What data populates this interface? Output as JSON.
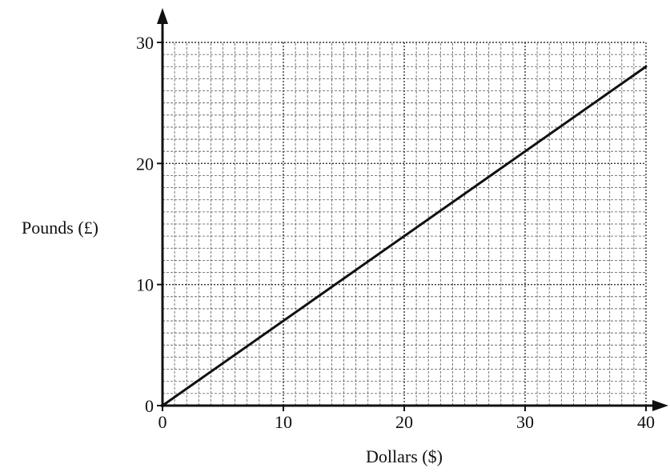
{
  "chart_data": {
    "type": "line",
    "title": "",
    "xlabel": "Dollars ($)",
    "ylabel": "Pounds (£)",
    "xlim": [
      0,
      40
    ],
    "ylim": [
      0,
      30
    ],
    "x_ticks": [
      0,
      10,
      20,
      30,
      40
    ],
    "y_ticks": [
      0,
      10,
      20,
      30
    ],
    "x_tick_labels": [
      "0",
      "10",
      "20",
      "30",
      "40"
    ],
    "y_tick_labels": [
      "0",
      "10",
      "20",
      "30"
    ],
    "grid": {
      "major": true,
      "minor": true,
      "minor_step_x": 1,
      "minor_step_y": 1,
      "major_step_x": 10,
      "major_step_y": 10
    },
    "series": [
      {
        "x": [
          0,
          40
        ],
        "y": [
          0,
          28
        ],
        "color": "#111111"
      }
    ],
    "colors": {
      "axis": "#111111",
      "grid_major": "#333333",
      "grid_minor": "#555555",
      "line": "#111111"
    }
  }
}
